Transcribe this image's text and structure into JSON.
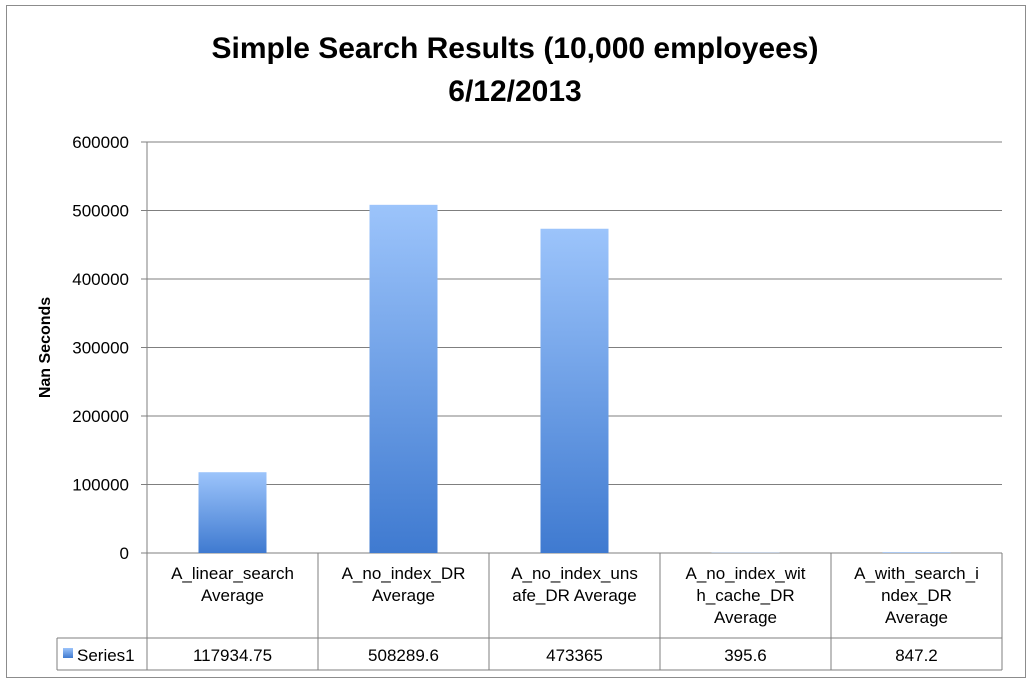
{
  "chart_data": {
    "type": "bar",
    "title_lines": [
      "Simple Search Results (10,000 employees)",
      "6/12/2013"
    ],
    "xlabel": "",
    "ylabel": "Nan Seconds",
    "ylim": [
      0,
      600000
    ],
    "yticks": [
      0,
      100000,
      200000,
      300000,
      400000,
      500000,
      600000
    ],
    "y_tick_labels": [
      "0",
      "100000",
      "200000",
      "300000",
      "400000",
      "500000",
      "600000"
    ],
    "grid": true,
    "legend_placement": "data-table",
    "categories": [
      [
        "A_linear_search",
        "Average"
      ],
      [
        "A_no_index_DR",
        "Average"
      ],
      [
        "A_no_index_uns",
        "afe_DR Average"
      ],
      [
        "A_no_index_wit",
        "h_cache_DR",
        "Average"
      ],
      [
        "A_with_search_i",
        "ndex_DR",
        "Average"
      ]
    ],
    "series": [
      {
        "name": "Series1",
        "values": [
          117934.75,
          508289.6,
          473365,
          395.6,
          847.2
        ],
        "value_labels": [
          "117934.75",
          "508289.6",
          "473365",
          "395.6",
          "847.2"
        ],
        "color": "#4a86d6"
      }
    ]
  },
  "colors": {
    "bar_top": "#9cc4fb",
    "bar_bottom": "#3f7ad0",
    "grid": "#7f7f7f",
    "axis": "#7f7f7f"
  }
}
